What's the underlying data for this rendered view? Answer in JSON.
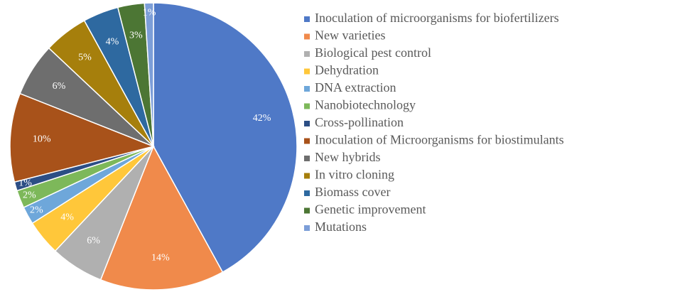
{
  "chart_data": {
    "type": "pie",
    "categories": [
      "Inoculation of microorganisms for biofertilizers",
      "New varieties",
      "Biological pest control",
      "Dehydration",
      "DNA extraction",
      "Nanobiotechnology",
      "Cross-pollination",
      "Inoculation of Microorganisms for biostimulants",
      "New hybrids",
      "In vitro cloning",
      "Biomass cover",
      "Genetic improvement",
      "Mutations"
    ],
    "values": [
      42,
      14,
      6,
      4,
      2,
      2,
      1,
      10,
      6,
      5,
      4,
      3,
      1
    ],
    "value_labels": [
      "42%",
      "14%",
      "6%",
      "4%",
      "2%",
      "2%",
      "1%",
      "10%",
      "6%",
      "5%",
      "4%",
      "3%",
      "1%"
    ],
    "colors": [
      "#4f79c7",
      "#f08a4b",
      "#b0b0b0",
      "#ffc73a",
      "#6ea7da",
      "#7db85a",
      "#2c4e85",
      "#a8521a",
      "#6e6e6e",
      "#a67f0c",
      "#2e69a0",
      "#4c7634",
      "#7c9ed8"
    ],
    "legend": "right"
  }
}
